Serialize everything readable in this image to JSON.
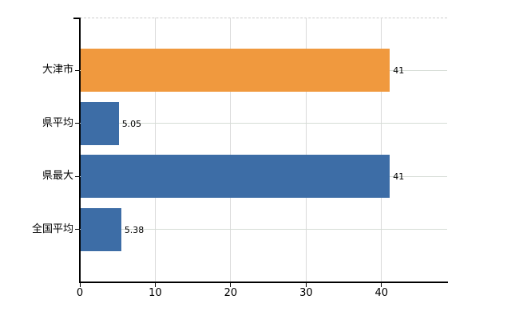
{
  "chart": {
    "background": "#ffffff",
    "axis_color": "#000000",
    "vertical_grid_color": "#d9d9d9",
    "horizontal_grid_color": "#d5dcd5",
    "top_border_color": "#cccccc",
    "text_color": "#000000"
  },
  "chart_data": {
    "type": "bar",
    "orientation": "horizontal",
    "title": "",
    "xlabel": "",
    "ylabel": "",
    "categories": [
      "大津市",
      "県平均",
      "県最大",
      "全国平均"
    ],
    "values": [
      41,
      5.05,
      41,
      5.38
    ],
    "value_labels": [
      "41",
      "5.05",
      "41",
      "5.38"
    ],
    "bar_colors": [
      "#f0993e",
      "#3d6da6",
      "#3d6da6",
      "#3d6da6"
    ],
    "x_ticks": [
      0,
      10,
      20,
      30,
      40
    ],
    "x_tick_labels": [
      "0",
      "10",
      "20",
      "30",
      "40"
    ],
    "xlim": [
      0,
      48.7
    ],
    "grid": true,
    "legend": false
  }
}
